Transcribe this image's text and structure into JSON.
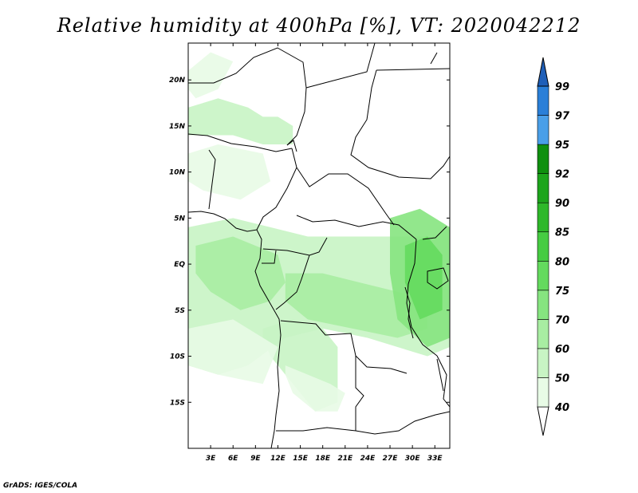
{
  "title": "Relative humidity at 400hPa [%], VT: 2020042212",
  "footer": "GrADS: IGES/COLA",
  "chart_data": {
    "type": "heatmap",
    "variable": "Relative humidity",
    "level": "400hPa",
    "units": "%",
    "valid_time": "2020042212",
    "lon_range": [
      0,
      35
    ],
    "lat_range": [
      -20,
      24
    ],
    "lon_ticks": [
      3,
      6,
      9,
      12,
      15,
      18,
      21,
      24,
      27,
      30,
      33
    ],
    "lon_tick_labels": [
      "3E",
      "6E",
      "9E",
      "12E",
      "15E",
      "18E",
      "21E",
      "24E",
      "27E",
      "30E",
      "33E"
    ],
    "lat_ticks": [
      20,
      15,
      10,
      5,
      0,
      -5,
      -10,
      -15
    ],
    "lat_tick_labels": [
      "20N",
      "15N",
      "10N",
      "5N",
      "EQ",
      "5S",
      "10S",
      "15S"
    ],
    "colorbar": {
      "levels": [
        40,
        50,
        60,
        70,
        75,
        80,
        85,
        90,
        92,
        95,
        97,
        99
      ],
      "level_labels": [
        "40",
        "50",
        "60",
        "70",
        "75",
        "80",
        "85",
        "90",
        "92",
        "95",
        "97",
        "99"
      ],
      "colors": [
        "#e8fbe6",
        "#c8f4c4",
        "#a8eda2",
        "#86e480",
        "#64da5e",
        "#46cc42",
        "#2eb82a",
        "#1da51c",
        "#0f900f",
        "#4a9fe8",
        "#2a7fd8",
        "#1f5fb8"
      ]
    },
    "regions": [
      {
        "name": "sahel-band-west",
        "level": 50,
        "lon": [
          0,
          4,
          8,
          10,
          12,
          14,
          14,
          10,
          6,
          2,
          0
        ],
        "lat": [
          17,
          18,
          17,
          16,
          16,
          15,
          13,
          13,
          14,
          14,
          14
        ]
      },
      {
        "name": "northwest-wisps",
        "level": 40,
        "lon": [
          0,
          3,
          6,
          4,
          1,
          0
        ],
        "lat": [
          21,
          23,
          22,
          19,
          18,
          19
        ]
      },
      {
        "name": "west-africa-patch",
        "level": 40,
        "lon": [
          0,
          4,
          10,
          11,
          7,
          2,
          0
        ],
        "lat": [
          12,
          13,
          12,
          9,
          7,
          8,
          9
        ]
      },
      {
        "name": "congo-basin-broad",
        "level": 50,
        "lon": [
          0,
          6,
          11,
          16,
          22,
          28,
          33,
          35,
          35,
          32,
          28,
          24,
          18,
          13,
          8,
          4,
          0
        ],
        "lat": [
          4,
          5,
          4,
          3,
          3,
          3,
          3,
          4,
          -9,
          -10,
          -9,
          -8,
          -7,
          -8,
          -11,
          -12,
          -11
        ]
      },
      {
        "name": "gabon-core",
        "level": 60,
        "lon": [
          1,
          6,
          9,
          12,
          13,
          11,
          7,
          3,
          1
        ],
        "lat": [
          2,
          3,
          2,
          1,
          -2,
          -4,
          -5,
          -3,
          -1
        ]
      },
      {
        "name": "central-band",
        "level": 60,
        "lon": [
          13,
          18,
          23,
          28,
          32,
          32,
          28,
          22,
          16,
          13
        ],
        "lat": [
          -1,
          -1,
          -2,
          -3,
          -4,
          -7,
          -8,
          -7,
          -6,
          -4
        ]
      },
      {
        "name": "east-africa-core",
        "level": 70,
        "lon": [
          27,
          31,
          35,
          35,
          32,
          28,
          27
        ],
        "lat": [
          5,
          6,
          4,
          -8,
          -9,
          -6,
          -1
        ]
      },
      {
        "name": "east-africa-peak",
        "level": 75,
        "lon": [
          29,
          32,
          34,
          34,
          31,
          29
        ],
        "lat": [
          2,
          3,
          1,
          -5,
          -6,
          -2
        ]
      },
      {
        "name": "angola-plume",
        "level": 50,
        "lon": [
          10,
          14,
          18,
          20,
          20,
          17,
          14,
          11,
          10
        ],
        "lat": [
          -7,
          -6,
          -7,
          -9,
          -15,
          -16,
          -13,
          -10,
          -8
        ]
      },
      {
        "name": "southern-tail",
        "level": 40,
        "lon": [
          13,
          16,
          19,
          21,
          20,
          17,
          14,
          13
        ],
        "lat": [
          -11,
          -12,
          -13,
          -14,
          -16,
          -16,
          -14,
          -12
        ]
      },
      {
        "name": "south-atlantic-strip",
        "level": 40,
        "lon": [
          0,
          6,
          12,
          10,
          4,
          0
        ],
        "lat": [
          -7,
          -6,
          -9,
          -13,
          -12,
          -11
        ]
      }
    ]
  }
}
